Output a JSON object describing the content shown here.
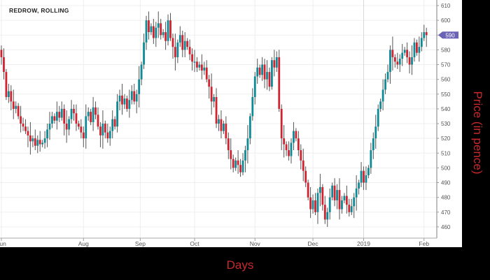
{
  "chart_data": {
    "type": "candlestick",
    "title": "REDROW, ROLLING",
    "xlabel": "Days",
    "ylabel": "Price (in pence)",
    "ylim": [
      453,
      613
    ],
    "y_ticks": [
      460,
      470,
      480,
      490,
      500,
      510,
      520,
      530,
      540,
      550,
      560,
      570,
      580,
      590,
      600,
      610
    ],
    "x_ticks": [
      {
        "label": "Jun",
        "index": 0
      },
      {
        "label": "Aug",
        "index": 34
      },
      {
        "label": "Sep",
        "index": 57.5
      },
      {
        "label": "Oct",
        "index": 80
      },
      {
        "label": "Nov",
        "index": 105
      },
      {
        "label": "Dec",
        "index": 129
      },
      {
        "label": "2019",
        "index": 150
      },
      {
        "label": "Feb",
        "index": 175
      }
    ],
    "last_price_label": "590",
    "grid": true,
    "colors": {
      "up": "#0e8a96",
      "down": "#d0232f",
      "wick": "#555555",
      "last_price_badge": "#6b63b5",
      "axis_title": "#c8282d"
    },
    "first_open": 580,
    "close": [
      575,
      565,
      548,
      552,
      545,
      540,
      542,
      535,
      530,
      528,
      525,
      522,
      518,
      520,
      515,
      519,
      516,
      517,
      520,
      526,
      530,
      535,
      532,
      538,
      534,
      540,
      530,
      526,
      533,
      540,
      537,
      530,
      528,
      524,
      520,
      535,
      538,
      531,
      541,
      536,
      528,
      522,
      530,
      524,
      520,
      525,
      533,
      528,
      545,
      549,
      543,
      547,
      540,
      546,
      552,
      545,
      550,
      560,
      570,
      585,
      600,
      592,
      596,
      588,
      595,
      598,
      590,
      592,
      586,
      600,
      588,
      582,
      575,
      585,
      590,
      580,
      586,
      582,
      577,
      572,
      572,
      568,
      570,
      566,
      568,
      560,
      555,
      545,
      548,
      530,
      533,
      525,
      530,
      520,
      512,
      506,
      500,
      505,
      502,
      497,
      505,
      512,
      520,
      535,
      548,
      562,
      568,
      563,
      570,
      560,
      565,
      555,
      573,
      568,
      575,
      540,
      520,
      516,
      512,
      508,
      517,
      525,
      520,
      512,
      505,
      498,
      490,
      480,
      472,
      478,
      470,
      483,
      487,
      475,
      465,
      470,
      480,
      488,
      478,
      485,
      472,
      478,
      481,
      475,
      470,
      474,
      480,
      486,
      490,
      498,
      490,
      495,
      500,
      512,
      520,
      528,
      540,
      545,
      553,
      560,
      565,
      580,
      575,
      572,
      570,
      574,
      578,
      580,
      575,
      570,
      575,
      585,
      578,
      582,
      588,
      592,
      590
    ]
  }
}
